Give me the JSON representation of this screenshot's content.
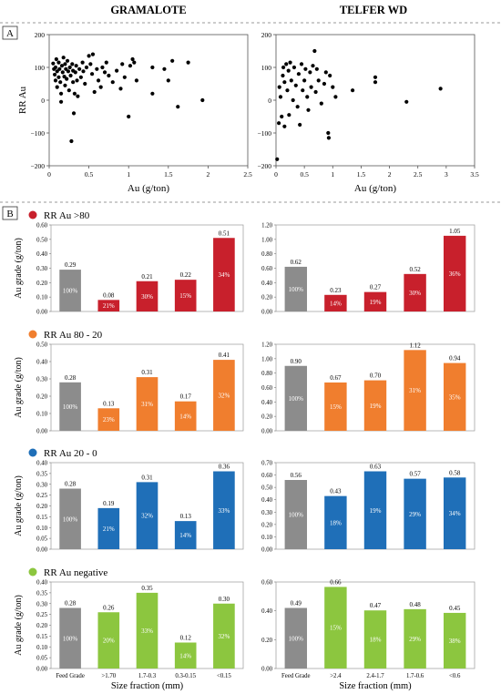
{
  "figure": {
    "col_titles": [
      "GRAMALOTE",
      "TELFER WD"
    ],
    "panel_a_label": "A",
    "panel_b_label": "B"
  },
  "colors": {
    "feed": "#8c8c8c",
    "rr_gt80": "#c8202c",
    "rr_80_20": "#f07e2e",
    "rr_20_0": "#1f6fb8",
    "rr_neg": "#8cc63f"
  },
  "chart_data": [
    {
      "type": "scatter",
      "id": "scatter-gramalote",
      "xlabel": "Au (g/ton)",
      "ylabel": "RR Au",
      "xlim": [
        0,
        2.5
      ],
      "ylim": [
        -200,
        200
      ],
      "xticks": [
        "0",
        "0.5",
        "1",
        "1.5",
        "2",
        "2.5"
      ],
      "yticks": [
        "200",
        "100",
        "0",
        "−100",
        "−200"
      ],
      "points": [
        [
          0.05,
          112
        ],
        [
          0.06,
          95
        ],
        [
          0.07,
          78
        ],
        [
          0.08,
          60
        ],
        [
          0.08,
          100
        ],
        [
          0.09,
          125
        ],
        [
          0.1,
          88
        ],
        [
          0.1,
          40
        ],
        [
          0.12,
          115
        ],
        [
          0.12,
          70
        ],
        [
          0.13,
          95
        ],
        [
          0.14,
          55
        ],
        [
          0.15,
          20
        ],
        [
          0.15,
          -5
        ],
        [
          0.16,
          105
        ],
        [
          0.17,
          85
        ],
        [
          0.18,
          130
        ],
        [
          0.19,
          72
        ],
        [
          0.2,
          110
        ],
        [
          0.2,
          45
        ],
        [
          0.21,
          95
        ],
        [
          0.22,
          65
        ],
        [
          0.23,
          120
        ],
        [
          0.24,
          88
        ],
        [
          0.25,
          30
        ],
        [
          0.26,
          100
        ],
        [
          0.27,
          75
        ],
        [
          0.28,
          -125
        ],
        [
          0.29,
          110
        ],
        [
          0.3,
          90
        ],
        [
          0.3,
          55
        ],
        [
          0.31,
          -40
        ],
        [
          0.32,
          20
        ],
        [
          0.33,
          85
        ],
        [
          0.34,
          105
        ],
        [
          0.35,
          60
        ],
        [
          0.36,
          12
        ],
        [
          0.38,
          95
        ],
        [
          0.4,
          70
        ],
        [
          0.42,
          115
        ],
        [
          0.43,
          88
        ],
        [
          0.45,
          50
        ],
        [
          0.47,
          100
        ],
        [
          0.5,
          135
        ],
        [
          0.52,
          110
        ],
        [
          0.54,
          80
        ],
        [
          0.55,
          140
        ],
        [
          0.57,
          25
        ],
        [
          0.6,
          95
        ],
        [
          0.62,
          60
        ],
        [
          0.65,
          40
        ],
        [
          0.67,
          100
        ],
        [
          0.7,
          85
        ],
        [
          0.72,
          115
        ],
        [
          0.75,
          75
        ],
        [
          0.8,
          55
        ],
        [
          0.85,
          90
        ],
        [
          0.9,
          35
        ],
        [
          0.92,
          110
        ],
        [
          0.95,
          70
        ],
        [
          1.0,
          -50
        ],
        [
          1.02,
          105
        ],
        [
          1.05,
          125
        ],
        [
          1.07,
          115
        ],
        [
          1.1,
          60
        ],
        [
          1.3,
          20
        ],
        [
          1.3,
          100
        ],
        [
          1.45,
          95
        ],
        [
          1.5,
          60
        ],
        [
          1.55,
          120
        ],
        [
          1.62,
          -20
        ],
        [
          1.75,
          115
        ],
        [
          1.93,
          0
        ]
      ]
    },
    {
      "type": "scatter",
      "id": "scatter-telfer",
      "xlabel": "Au (g/ton)",
      "ylabel": "",
      "xlim": [
        0,
        3.5
      ],
      "ylim": [
        -200,
        200
      ],
      "xticks": [
        "0",
        "0.5",
        "1",
        "1.5",
        "2",
        "2.5",
        "3",
        "3.5"
      ],
      "yticks": [
        "200",
        "100",
        "0",
        "−100",
        "−200"
      ],
      "points": [
        [
          0.02,
          -180
        ],
        [
          0.05,
          -70
        ],
        [
          0.06,
          40
        ],
        [
          0.08,
          10
        ],
        [
          0.1,
          -50
        ],
        [
          0.12,
          75
        ],
        [
          0.13,
          100
        ],
        [
          0.15,
          -80
        ],
        [
          0.15,
          55
        ],
        [
          0.18,
          110
        ],
        [
          0.2,
          30
        ],
        [
          0.22,
          90
        ],
        [
          0.23,
          -45
        ],
        [
          0.25,
          115
        ],
        [
          0.27,
          60
        ],
        [
          0.3,
          0
        ],
        [
          0.32,
          100
        ],
        [
          0.35,
          45
        ],
        [
          0.38,
          -20
        ],
        [
          0.4,
          80
        ],
        [
          0.42,
          -75
        ],
        [
          0.45,
          110
        ],
        [
          0.47,
          30
        ],
        [
          0.5,
          60
        ],
        [
          0.52,
          95
        ],
        [
          0.55,
          10
        ],
        [
          0.57,
          -30
        ],
        [
          0.6,
          85
        ],
        [
          0.62,
          40
        ],
        [
          0.65,
          105
        ],
        [
          0.68,
          150
        ],
        [
          0.7,
          25
        ],
        [
          0.72,
          95
        ],
        [
          0.75,
          60
        ],
        [
          0.8,
          -10
        ],
        [
          0.85,
          50
        ],
        [
          0.88,
          85
        ],
        [
          0.92,
          -100
        ],
        [
          0.93,
          -115
        ],
        [
          0.95,
          75
        ],
        [
          1.0,
          40
        ],
        [
          1.05,
          10
        ],
        [
          1.35,
          30
        ],
        [
          1.75,
          55
        ],
        [
          1.75,
          70
        ],
        [
          2.3,
          -5
        ],
        [
          2.9,
          35
        ]
      ]
    },
    {
      "type": "bar",
      "id": "bar-g-gt80",
      "category_label": "RR Au >80",
      "color": "rr_gt80",
      "show_xticks": false,
      "categories": [
        "Feed Grade",
        ">1.70",
        "1.7-0.3",
        "0.3-0.15",
        "<0.15"
      ],
      "values": [
        0.29,
        0.08,
        0.21,
        0.22,
        0.51
      ],
      "value_labels": [
        "0.29",
        "0.08",
        "0.21",
        "0.22",
        "0.51"
      ],
      "pct_labels": [
        "100%",
        "21%",
        "30%",
        "15%",
        "34%"
      ],
      "ylabel": "Au grade (g/ton)",
      "ylim": [
        0,
        0.6
      ],
      "yticks": [
        "0.00",
        "0.10",
        "0.20",
        "0.30",
        "0.40",
        "0.50",
        "0.60"
      ]
    },
    {
      "type": "bar",
      "id": "bar-t-gt80",
      "category_label": "",
      "color": "rr_gt80",
      "show_xticks": false,
      "categories": [
        "Feed Grade",
        ">2.4",
        "2.4-1.7",
        "1.7-0.6",
        "<0.6"
      ],
      "values": [
        0.62,
        0.23,
        0.27,
        0.52,
        1.05
      ],
      "value_labels": [
        "0.62",
        "0.23",
        "0.27",
        "0.52",
        "1.05"
      ],
      "pct_labels": [
        "100%",
        "14%",
        "19%",
        "30%",
        "36%"
      ],
      "ylabel": "",
      "ylim": [
        0,
        1.2
      ],
      "yticks": [
        "0.00",
        "0.20",
        "0.40",
        "0.60",
        "0.80",
        "1.00",
        "1.20"
      ]
    },
    {
      "type": "bar",
      "id": "bar-g-80-20",
      "category_label": "RR Au 80 - 20",
      "color": "rr_80_20",
      "show_xticks": false,
      "categories": [
        "Feed Grade",
        ">1.70",
        "1.7-0.3",
        "0.3-0.15",
        "<0.15"
      ],
      "values": [
        0.28,
        0.13,
        0.31,
        0.17,
        0.41
      ],
      "value_labels": [
        "0.28",
        "0.13",
        "0.31",
        "0.17",
        "0.41"
      ],
      "pct_labels": [
        "100%",
        "23%",
        "31%",
        "14%",
        "32%"
      ],
      "ylabel": "Au grade (g/ton)",
      "ylim": [
        0,
        0.5
      ],
      "yticks": [
        "0.00",
        "0.10",
        "0.20",
        "0.30",
        "0.40",
        "0.50"
      ]
    },
    {
      "type": "bar",
      "id": "bar-t-80-20",
      "category_label": "",
      "color": "rr_80_20",
      "show_xticks": false,
      "categories": [
        "Feed Grade",
        ">2.4",
        "2.4-1.7",
        "1.7-0.6",
        "<0.6"
      ],
      "values": [
        0.9,
        0.67,
        0.7,
        1.12,
        0.94
      ],
      "value_labels": [
        "0.90",
        "0.67",
        "0.70",
        "1.12",
        "0.94"
      ],
      "pct_labels": [
        "100%",
        "15%",
        "19%",
        "31%",
        "35%"
      ],
      "ylabel": "",
      "ylim": [
        0,
        1.2
      ],
      "yticks": [
        "0.00",
        "0.20",
        "0.40",
        "0.60",
        "0.80",
        "1.00",
        "1.20"
      ]
    },
    {
      "type": "bar",
      "id": "bar-g-20-0",
      "category_label": "RR Au 20 - 0",
      "color": "rr_20_0",
      "show_xticks": false,
      "categories": [
        "Feed Grade",
        ">1.70",
        "1.7-0.3",
        "0.3-0.15",
        "<0.15"
      ],
      "values": [
        0.28,
        0.19,
        0.31,
        0.13,
        0.36
      ],
      "value_labels": [
        "0.28",
        "0.19",
        "0.31",
        "0.13",
        "0.36"
      ],
      "pct_labels": [
        "100%",
        "21%",
        "32%",
        "14%",
        "33%"
      ],
      "ylabel": "Au grade (g/ton)",
      "ylim": [
        0,
        0.4
      ],
      "yticks": [
        "0.00",
        "0.05",
        "0.10",
        "0.15",
        "0.20",
        "0.25",
        "0.30",
        "0.35",
        "0.40"
      ]
    },
    {
      "type": "bar",
      "id": "bar-t-20-0",
      "category_label": "",
      "color": "rr_20_0",
      "show_xticks": false,
      "categories": [
        "Feed Grade",
        ">2.4",
        "2.4-1.7",
        "1.7-0.6",
        "<0.6"
      ],
      "values": [
        0.56,
        0.43,
        0.63,
        0.57,
        0.58
      ],
      "value_labels": [
        "0.56",
        "0.43",
        "0.63",
        "0.57",
        "0.58"
      ],
      "pct_labels": [
        "100%",
        "18%",
        "19%",
        "29%",
        "34%"
      ],
      "ylabel": "",
      "ylim": [
        0,
        0.7
      ],
      "yticks": [
        "0.00",
        "0.10",
        "0.20",
        "0.30",
        "0.40",
        "0.50",
        "0.60",
        "0.70"
      ]
    },
    {
      "type": "bar",
      "id": "bar-g-neg",
      "category_label": "RR Au negative",
      "color": "rr_neg",
      "show_xticks": true,
      "categories": [
        "Feed Grade",
        ">1.70",
        "1.7-0.3",
        "0.3-0.15",
        "<0.15"
      ],
      "values": [
        0.28,
        0.26,
        0.35,
        0.12,
        0.3
      ],
      "value_labels": [
        "0.28",
        "0.26",
        "0.35",
        "0.12",
        "0.30"
      ],
      "pct_labels": [
        "100%",
        "20%",
        "33%",
        "14%",
        "32%"
      ],
      "xlabel": "Size fraction (mm)",
      "ylabel": "Au grade (g/ton)",
      "ylim": [
        0,
        0.4
      ],
      "yticks": [
        "0.00",
        "0.05",
        "0.10",
        "0.15",
        "0.20",
        "0.25",
        "0.30",
        "0.35",
        "0.40"
      ]
    },
    {
      "type": "bar",
      "id": "bar-t-neg",
      "category_label": "",
      "color": "rr_neg",
      "show_xticks": true,
      "categories": [
        "Feed Grade",
        ">2.4",
        "2.4-1.7",
        "1.7-0.6",
        "<0.6"
      ],
      "values": [
        0.49,
        0.66,
        0.47,
        0.48,
        0.45
      ],
      "value_labels": [
        "0.49",
        "0.66",
        "0.47",
        "0.48",
        "0.45"
      ],
      "pct_labels": [
        "100%",
        "15%",
        "18%",
        "29%",
        "38%"
      ],
      "xlabel": "Size fraction (mm)",
      "ylabel": "",
      "ylim": [
        0,
        0.7
      ],
      "yticks": [
        "0.00",
        "0.20",
        "0.40",
        "0.60"
      ]
    }
  ]
}
